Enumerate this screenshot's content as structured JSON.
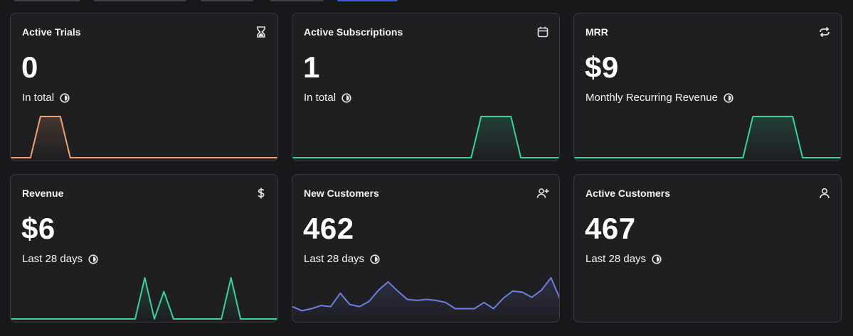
{
  "cards": [
    {
      "title": "Active Trials",
      "value": "0",
      "subtitle": "In total",
      "icon": "hourglass-icon",
      "color": "#f0a070",
      "series": [
        0,
        0,
        0,
        1,
        1,
        1,
        0,
        0,
        0,
        0,
        0,
        0,
        0,
        0,
        0,
        0,
        0,
        0,
        0,
        0,
        0,
        0,
        0,
        0,
        0,
        0,
        0,
        0
      ]
    },
    {
      "title": "Active Subscriptions",
      "value": "1",
      "subtitle": "In total",
      "icon": "calendar-icon",
      "color": "#34d399",
      "series": [
        0,
        0,
        0,
        0,
        0,
        0,
        0,
        0,
        0,
        0,
        0,
        0,
        0,
        0,
        0,
        0,
        0,
        0,
        0,
        1,
        1,
        1,
        1,
        0,
        0,
        0,
        0,
        0
      ]
    },
    {
      "title": "MRR",
      "value": "$9",
      "subtitle": "Monthly Recurring Revenue",
      "icon": "refresh-icon",
      "color": "#34d399",
      "series": [
        0,
        0,
        0,
        0,
        0,
        0,
        0,
        0,
        0,
        0,
        0,
        0,
        0,
        0,
        0,
        0,
        0,
        0,
        1,
        1,
        1,
        1,
        1,
        0,
        0,
        0,
        0,
        0
      ]
    },
    {
      "title": "Revenue",
      "value": "$6",
      "subtitle": "Last 28 days",
      "icon": "dollar-icon",
      "color": "#34d399",
      "series": [
        0,
        0,
        0,
        0,
        0,
        0,
        0,
        0,
        0,
        0,
        0,
        0,
        0,
        0,
        3,
        0,
        2,
        0,
        0,
        0,
        0,
        0,
        0,
        3,
        0,
        0,
        0,
        0,
        0
      ]
    },
    {
      "title": "New Customers",
      "value": "462",
      "subtitle": "Last 28 days",
      "icon": "user-plus-icon",
      "color": "#6b7fe0",
      "series": [
        12,
        8,
        10,
        13,
        12,
        25,
        14,
        12,
        17,
        28,
        36,
        27,
        19,
        18,
        19,
        18,
        16,
        10,
        10,
        10,
        16,
        10,
        20,
        27,
        26,
        21,
        28,
        40,
        18
      ]
    },
    {
      "title": "Active Customers",
      "value": "467",
      "subtitle": "Last 28 days",
      "icon": "user-icon",
      "color": "#34d399",
      "series": []
    }
  ]
}
